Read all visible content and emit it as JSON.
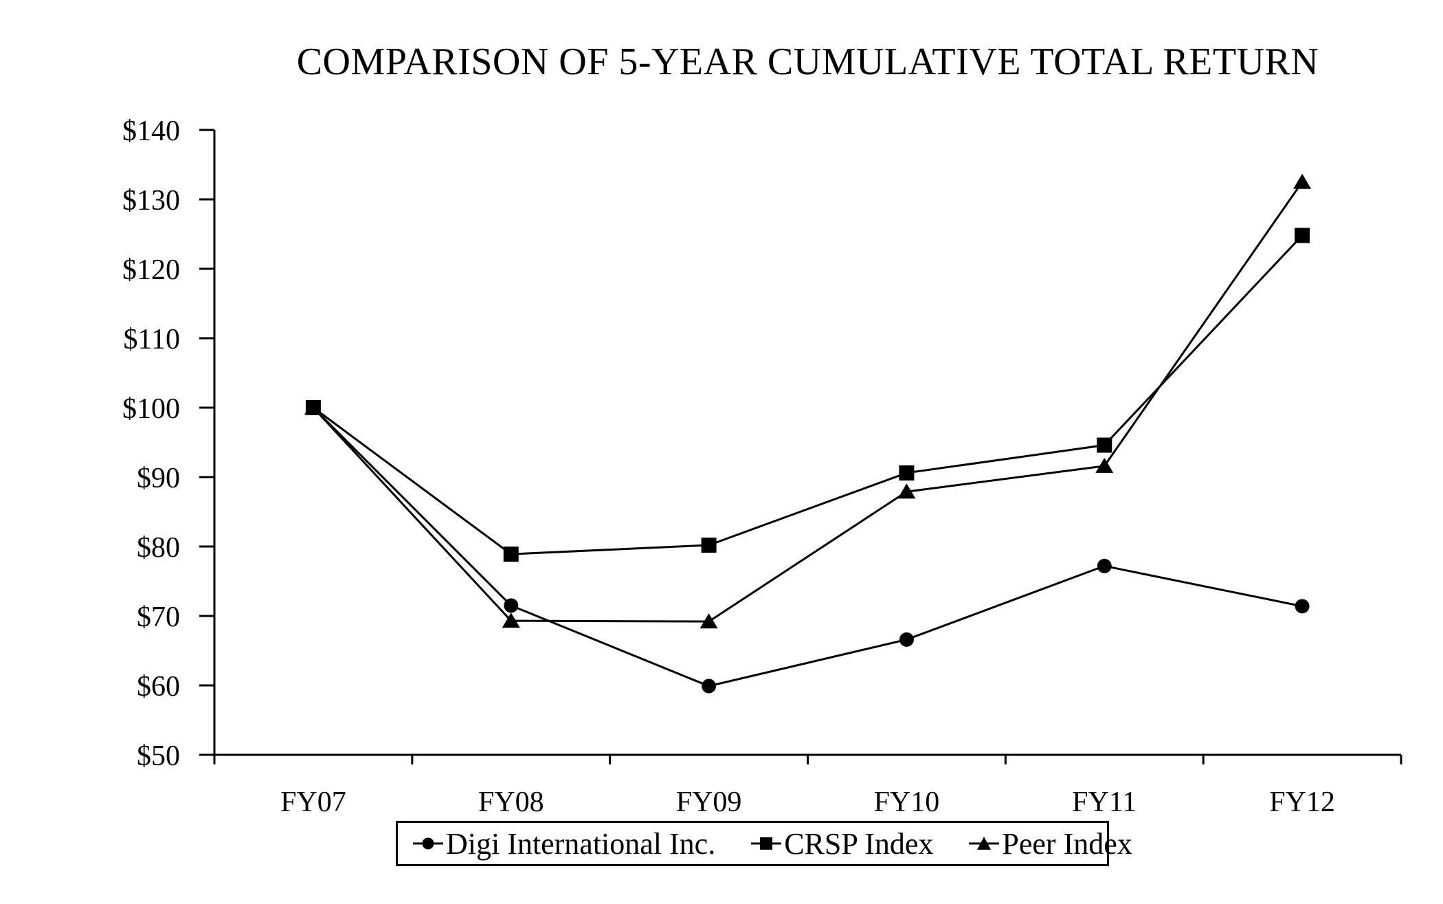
{
  "chart_data": {
    "type": "line",
    "title": "COMPARISON OF 5-YEAR CUMULATIVE TOTAL RETURN",
    "categories": [
      "FY07",
      "FY08",
      "FY09",
      "FY10",
      "FY11",
      "FY12"
    ],
    "series": [
      {
        "name": "Digi International Inc.",
        "marker": "circle",
        "values": [
          100.0,
          71.5,
          59.9,
          66.6,
          77.2,
          71.4
        ]
      },
      {
        "name": "CRSP Index",
        "marker": "square",
        "values": [
          100.0,
          78.9,
          80.2,
          90.6,
          94.6,
          124.8
        ]
      },
      {
        "name": "Peer Index",
        "marker": "triangle",
        "values": [
          100.0,
          69.3,
          69.2,
          87.9,
          91.6,
          132.5
        ]
      }
    ],
    "xlabel": "",
    "ylabel": "",
    "ylim": [
      50,
      140
    ],
    "y_ticks": [
      {
        "value": 140,
        "label": "$140"
      },
      {
        "value": 130,
        "label": "$130"
      },
      {
        "value": 120,
        "label": "$120"
      },
      {
        "value": 110,
        "label": "$110"
      },
      {
        "value": 100,
        "label": "$100"
      },
      {
        "value": 90,
        "label": "$90"
      },
      {
        "value": 80,
        "label": "$80"
      },
      {
        "value": 70,
        "label": "$70"
      },
      {
        "value": 60,
        "label": "$60"
      },
      {
        "value": 50,
        "label": "$50"
      }
    ],
    "grid": false,
    "legend_position": "bottom",
    "line_color": "#000000",
    "background_color": "#ffffff"
  }
}
